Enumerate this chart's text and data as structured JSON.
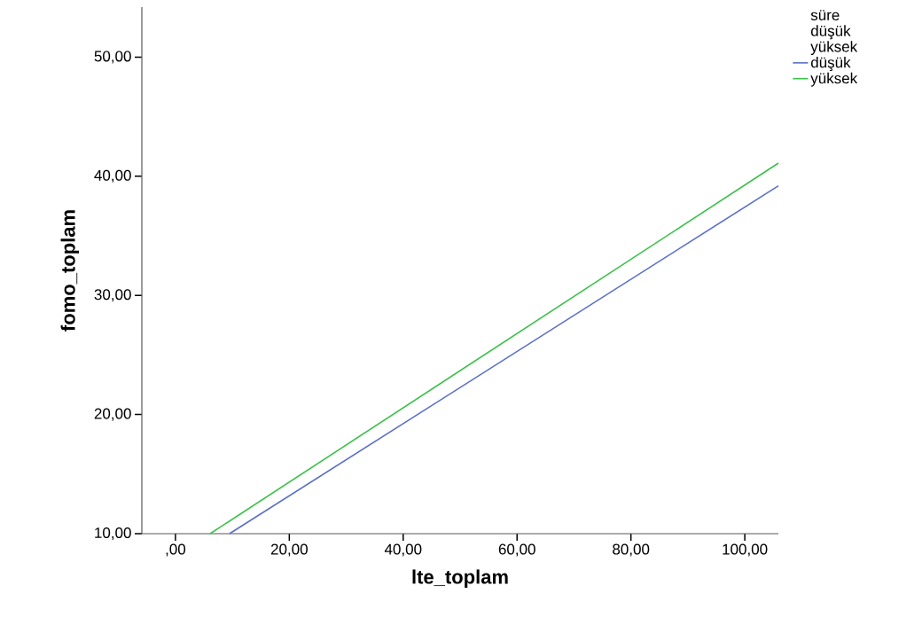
{
  "chart_data": {
    "type": "line",
    "xlabel": "lte_toplam",
    "ylabel": "fomo_toplam",
    "legend_title": "süre",
    "annotations": [
      "düşük",
      "yüksek"
    ],
    "series": [
      {
        "name": "düşük",
        "color": "#5a6ec8",
        "x": [
          9.5,
          105.9
        ],
        "values": [
          10,
          39.2
        ]
      },
      {
        "name": "yüksek",
        "color": "#3cc04a",
        "x": [
          6.1,
          105.9
        ],
        "values": [
          10,
          41.1
        ]
      }
    ],
    "xlim": [
      -5.9,
      105.9
    ],
    "ylim": [
      10,
      54.2
    ],
    "xticks": [
      {
        "value": 0,
        "label": ",00"
      },
      {
        "value": 20,
        "label": "20,00"
      },
      {
        "value": 40,
        "label": "40,00"
      },
      {
        "value": 60,
        "label": "60,00"
      },
      {
        "value": 80,
        "label": "80,00"
      },
      {
        "value": 100,
        "label": "100,00"
      }
    ],
    "yticks": [
      {
        "value": 10,
        "label": "10,00"
      },
      {
        "value": 20,
        "label": "20,00"
      },
      {
        "value": 30,
        "label": "30,00"
      },
      {
        "value": 40,
        "label": "40,00"
      },
      {
        "value": 50,
        "label": "50,00"
      }
    ],
    "grid": false,
    "legend": "top right",
    "marker": "none",
    "line_style": "solid"
  }
}
